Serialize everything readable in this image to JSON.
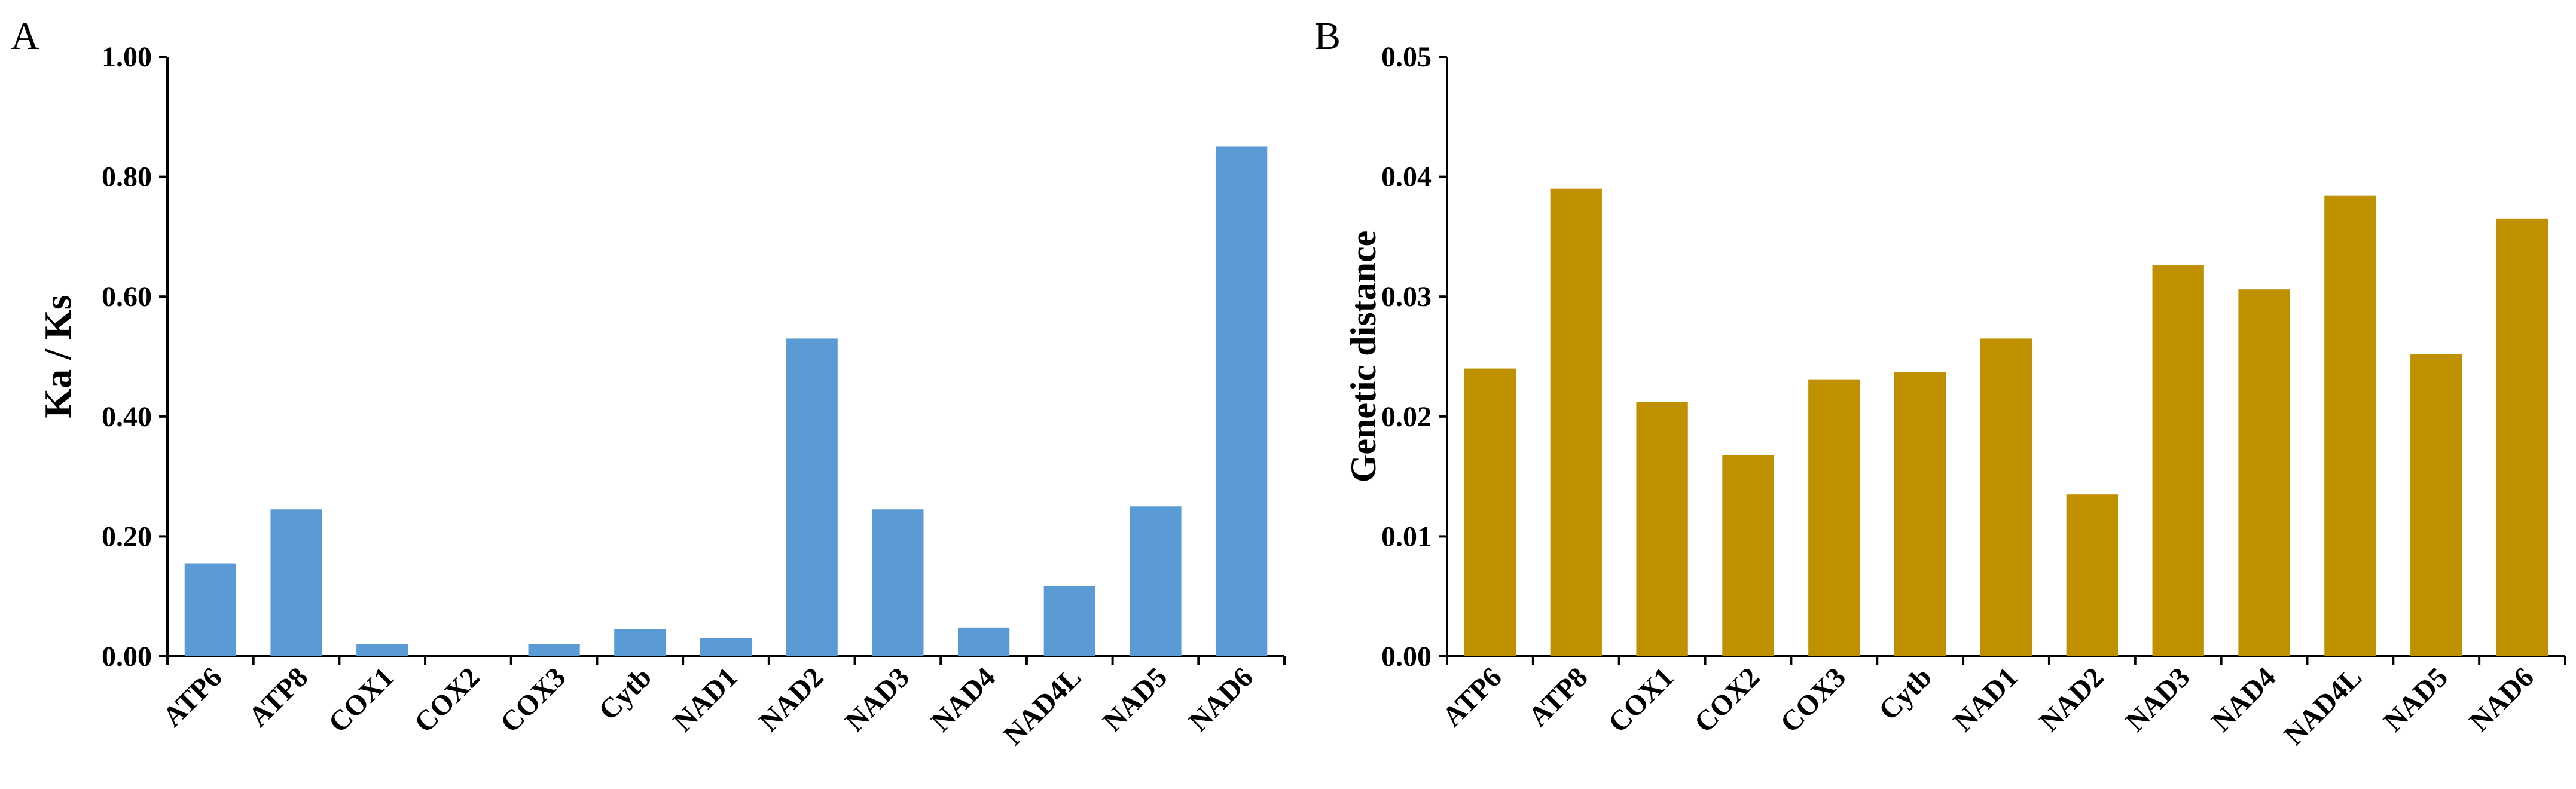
{
  "chart_data": [
    {
      "panel": "A",
      "type": "bar",
      "title": "",
      "xlabel": "",
      "ylabel": "Ka / Ks",
      "ylim": [
        0,
        1.0
      ],
      "yticks": [
        "0.00",
        "0.20",
        "0.40",
        "0.60",
        "0.80",
        "1.00"
      ],
      "ytick_values": [
        0,
        0.2,
        0.4,
        0.6,
        0.8,
        1.0
      ],
      "categories": [
        "ATP6",
        "ATP8",
        "COX1",
        "COX2",
        "COX3",
        "Cytb",
        "NAD1",
        "NAD2",
        "NAD3",
        "NAD4",
        "NAD4L",
        "NAD5",
        "NAD6"
      ],
      "values": [
        0.155,
        0.245,
        0.02,
        0.0,
        0.02,
        0.045,
        0.03,
        0.53,
        0.245,
        0.048,
        0.117,
        0.25,
        0.85
      ],
      "color": "#5b9bd5",
      "grid": false
    },
    {
      "panel": "B",
      "type": "bar",
      "title": "",
      "xlabel": "",
      "ylabel": "Genetic distance",
      "ylim": [
        0,
        0.05
      ],
      "yticks": [
        "0.00",
        "0.01",
        "0.02",
        "0.03",
        "0.04",
        "0.05"
      ],
      "ytick_values": [
        0,
        0.01,
        0.02,
        0.03,
        0.04,
        0.05
      ],
      "categories": [
        "ATP6",
        "ATP8",
        "COX1",
        "COX2",
        "COX3",
        "Cytb",
        "NAD1",
        "NAD2",
        "NAD3",
        "NAD4",
        "NAD4L",
        "NAD5",
        "NAD6"
      ],
      "values": [
        0.024,
        0.039,
        0.0212,
        0.0168,
        0.0231,
        0.0237,
        0.0265,
        0.0135,
        0.0326,
        0.0306,
        0.0384,
        0.0252,
        0.0365
      ],
      "color": "#bf9000",
      "grid": false
    }
  ]
}
